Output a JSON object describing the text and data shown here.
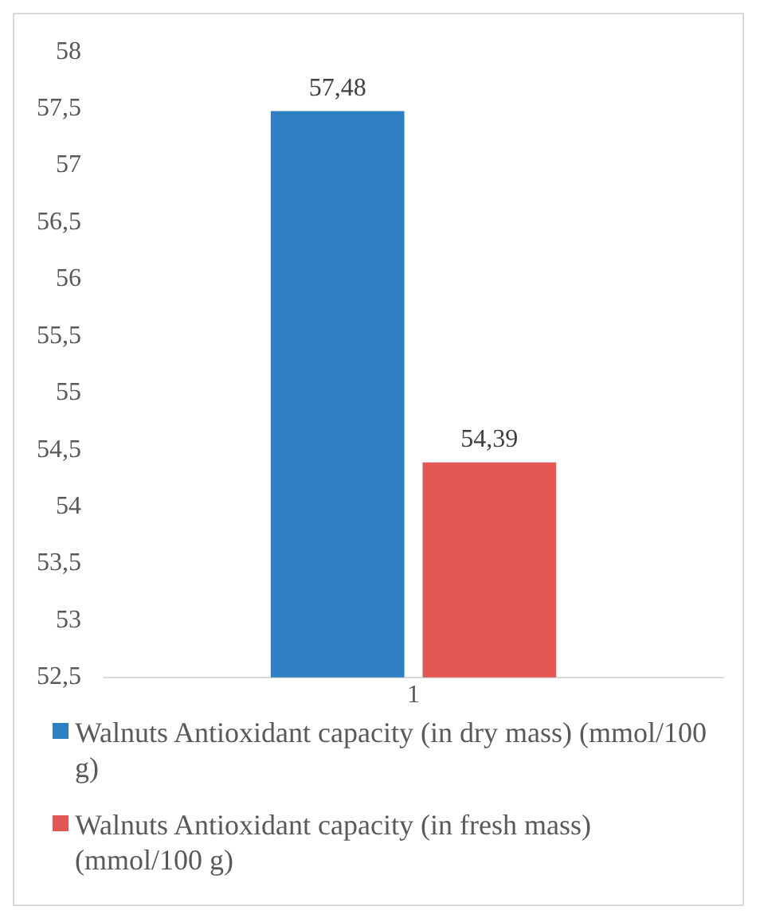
{
  "chart_data": {
    "type": "bar",
    "categories": [
      "1"
    ],
    "series": [
      {
        "name": "Walnuts Antioxidant capacity (in dry mass) (mmol/100 g)",
        "color": "#2e80c3",
        "values": [
          57.48
        ],
        "value_labels": [
          "57,48"
        ]
      },
      {
        "name": "Walnuts Antioxidant capacity (in fresh mass) (mmol/100 g)",
        "color": "#e35855",
        "values": [
          54.39
        ],
        "value_labels": [
          "54,39"
        ]
      }
    ],
    "ylim": [
      52.5,
      58
    ],
    "yticks": [
      {
        "value": 52.5,
        "label": "52,5"
      },
      53,
      {
        "value": 53.5,
        "label": "53,5"
      },
      54,
      {
        "value": 54.5,
        "label": "54,5"
      },
      55,
      {
        "value": 55.5,
        "label": "55,5"
      },
      56,
      {
        "value": 56.5,
        "label": "56,5"
      },
      57,
      {
        "value": 57.5,
        "label": "57,5"
      },
      58
    ],
    "grid": false,
    "legend": "bottom"
  }
}
